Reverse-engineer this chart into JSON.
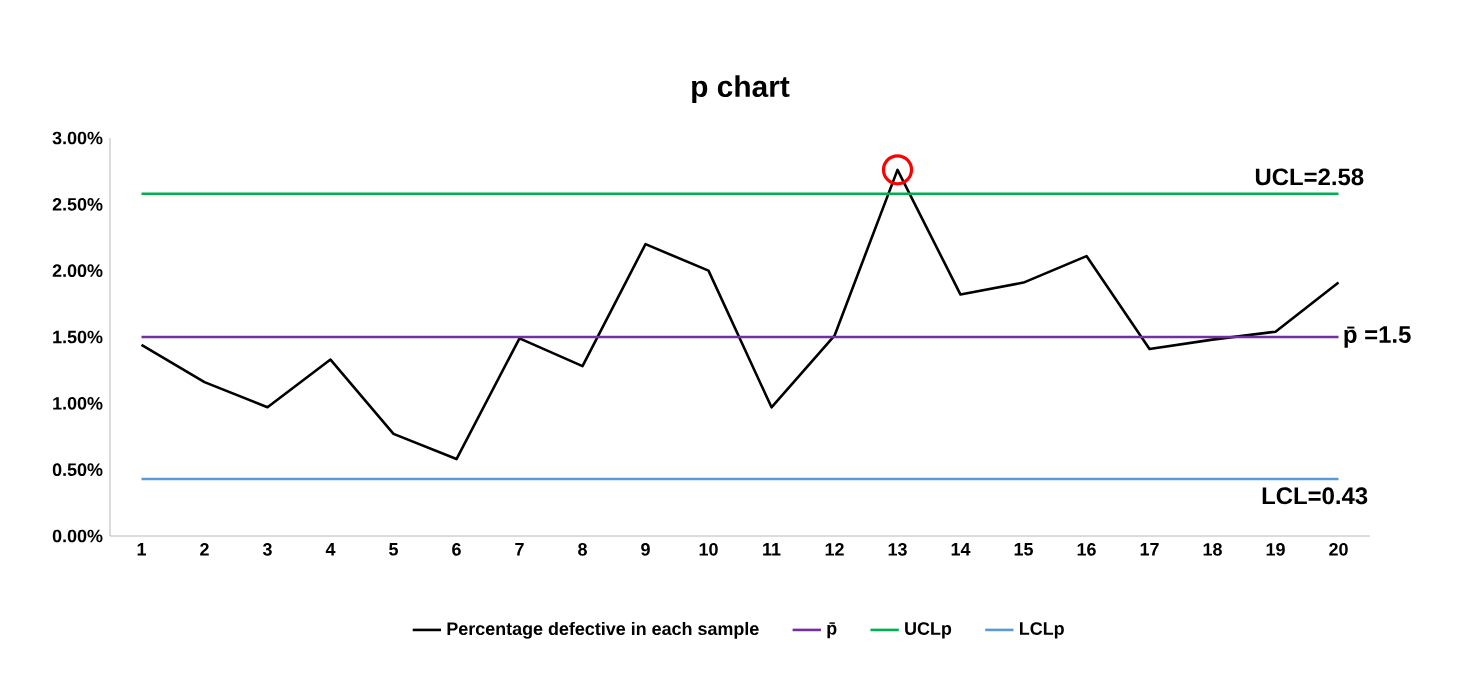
{
  "chart_data": {
    "type": "line",
    "title": "p chart",
    "categories": [
      "1",
      "2",
      "3",
      "4",
      "5",
      "6",
      "7",
      "8",
      "9",
      "10",
      "11",
      "12",
      "13",
      "14",
      "15",
      "16",
      "17",
      "18",
      "19",
      "20"
    ],
    "series": [
      {
        "name": "Percentage defective in each sample",
        "color": "#000000",
        "values": [
          1.44,
          1.16,
          0.97,
          1.33,
          0.77,
          0.58,
          1.49,
          1.28,
          2.2,
          2.0,
          0.97,
          1.51,
          2.76,
          1.82,
          1.91,
          2.11,
          1.41,
          1.48,
          1.54,
          1.91
        ]
      },
      {
        "name": "p̄",
        "color": "#7030a0",
        "values": [
          1.5,
          1.5,
          1.5,
          1.5,
          1.5,
          1.5,
          1.5,
          1.5,
          1.5,
          1.5,
          1.5,
          1.5,
          1.5,
          1.5,
          1.5,
          1.5,
          1.5,
          1.5,
          1.5,
          1.5
        ]
      },
      {
        "name": "UCLp",
        "color": "#00b050",
        "values": [
          2.58,
          2.58,
          2.58,
          2.58,
          2.58,
          2.58,
          2.58,
          2.58,
          2.58,
          2.58,
          2.58,
          2.58,
          2.58,
          2.58,
          2.58,
          2.58,
          2.58,
          2.58,
          2.58,
          2.58
        ]
      },
      {
        "name": "LCLp",
        "color": "#5b9bd5",
        "values": [
          0.43,
          0.43,
          0.43,
          0.43,
          0.43,
          0.43,
          0.43,
          0.43,
          0.43,
          0.43,
          0.43,
          0.43,
          0.43,
          0.43,
          0.43,
          0.43,
          0.43,
          0.43,
          0.43,
          0.43
        ]
      }
    ],
    "ylim": [
      0,
      3
    ],
    "yticks": [
      {
        "value": 0,
        "label": "0.00%"
      },
      {
        "value": 0.5,
        "label": "0.50%"
      },
      {
        "value": 1,
        "label": "1.00%"
      },
      {
        "value": 1.5,
        "label": "1.50%"
      },
      {
        "value": 2,
        "label": "2.00%"
      },
      {
        "value": 2.5,
        "label": "2.50%"
      },
      {
        "value": 3,
        "label": "3.00%"
      }
    ],
    "annotations": [
      {
        "text": "UCL=2.58",
        "x": "20",
        "y": 2.58
      },
      {
        "text": "p̄ =1.5",
        "x": "20",
        "y": 1.5
      },
      {
        "text": "LCL=0.43",
        "x": "20",
        "y": 0.43
      }
    ],
    "legend": "bottom",
    "grid": false,
    "marker": "none",
    "line_style": "solid"
  }
}
